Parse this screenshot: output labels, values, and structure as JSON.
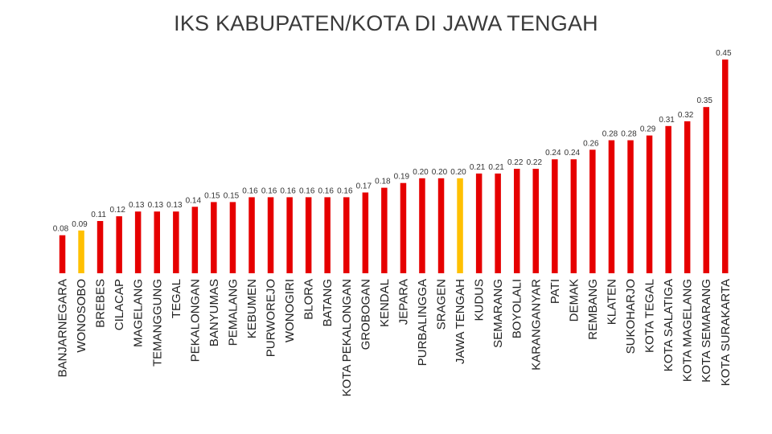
{
  "chart_data": {
    "type": "bar",
    "title": "IKS KABUPATEN/KOTA DI JAWA TENGAH",
    "xlabel": "",
    "ylabel": "",
    "ylim": [
      0,
      0.45
    ],
    "grid": false,
    "categories": [
      "BANJARNEGARA",
      "WONOSOBO",
      "BREBES",
      "CILACAP",
      "MAGELANG",
      "TEMANGGUNG",
      "TEGAL",
      "PEKALONGAN",
      "BANYUMAS",
      "PEMALANG",
      "KEBUMEN",
      "PURWOREJO",
      "WONOGIRI",
      "BLORA",
      "BATANG",
      "KOTA PEKALONGAN",
      "GROBOGAN",
      "KENDAL",
      "JEPARA",
      "PURBALINGGA",
      "SRAGEN",
      "JAWA TENGAH",
      "KUDUS",
      "SEMARANG",
      "BOYOLALI",
      "KARANGANYAR",
      "PATI",
      "DEMAK",
      "REMBANG",
      "KLATEN",
      "SUKOHARJO",
      "KOTA TEGAL",
      "KOTA SALATIGA",
      "KOTA MAGELANG",
      "KOTA SEMARANG",
      "KOTA SURAKARTA"
    ],
    "values": [
      0.08,
      0.09,
      0.11,
      0.12,
      0.13,
      0.13,
      0.13,
      0.14,
      0.15,
      0.15,
      0.16,
      0.16,
      0.16,
      0.16,
      0.16,
      0.16,
      0.17,
      0.18,
      0.19,
      0.2,
      0.2,
      0.2,
      0.21,
      0.21,
      0.22,
      0.22,
      0.24,
      0.24,
      0.26,
      0.28,
      0.28,
      0.29,
      0.31,
      0.32,
      0.35,
      0.45
    ],
    "labels": [
      "0.08",
      "0.09",
      "0.11",
      "0.12",
      "0.13",
      "0.13",
      "0.13",
      "0.14",
      "0.15",
      "0.15",
      "0.16",
      "0.16",
      "0.16",
      "0.16",
      "0.16",
      "0.16",
      "0.17",
      "0.18",
      "0.19",
      "0.20",
      "0.20",
      "0.20",
      "0.21",
      "0.21",
      "0.22",
      "0.22",
      "0.24",
      "0.24",
      "0.26",
      "0.28",
      "0.28",
      "0.29",
      "0.31",
      "0.32",
      "0.35",
      "0.45"
    ],
    "highlight": [
      "WONOSOBO",
      "JAWA TENGAH"
    ],
    "colors": {
      "bar": "#e60000",
      "highlight": "#ffc000"
    }
  }
}
